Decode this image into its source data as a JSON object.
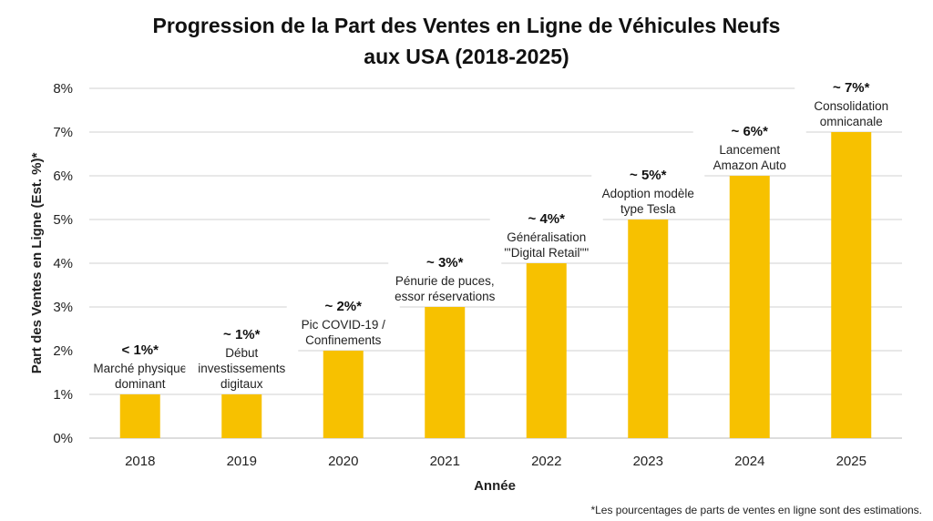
{
  "chart_data": {
    "type": "bar",
    "title": [
      "Progression de la Part des Ventes en Ligne de Véhicules Neufs",
      "aux USA (2018-2025)"
    ],
    "xlabel": "Année",
    "ylabel": "Part des Ventes en Ligne (Est. %)*",
    "categories": [
      "2018",
      "2019",
      "2020",
      "2021",
      "2022",
      "2023",
      "2024",
      "2025"
    ],
    "values": [
      1,
      1,
      2,
      3,
      4,
      5,
      6,
      7
    ],
    "ylim": [
      0,
      8
    ],
    "yticks": [
      "0%",
      "1%",
      "2%",
      "3%",
      "4%",
      "5%",
      "6%",
      "7%",
      "8%"
    ],
    "grid": true,
    "bar_color": "#F7C100",
    "annotations": [
      {
        "value_label": "< 1%*",
        "lines": [
          "Marché physique",
          "dominant"
        ]
      },
      {
        "value_label": "~ 1%*",
        "lines": [
          "Début",
          "investissements",
          "digitaux"
        ]
      },
      {
        "value_label": "~ 2%*",
        "lines": [
          "Pic COVID-19 /",
          "Confinements"
        ]
      },
      {
        "value_label": "~ 3%*",
        "lines": [
          "Pénurie de puces,",
          "essor réservations"
        ]
      },
      {
        "value_label": "~ 4%*",
        "lines": [
          "Généralisation",
          "\"'Digital Retail\"\""
        ]
      },
      {
        "value_label": "~ 5%*",
        "lines": [
          "Adoption modèle",
          "type Tesla"
        ]
      },
      {
        "value_label": "~ 6%*",
        "lines": [
          "Lancement",
          "Amazon Auto"
        ]
      },
      {
        "value_label": "~ 7%*",
        "lines": [
          "Consolidation",
          "omnicanale"
        ]
      }
    ],
    "footnote": "*Les pourcentages de parts de ventes en ligne sont des estimations."
  }
}
